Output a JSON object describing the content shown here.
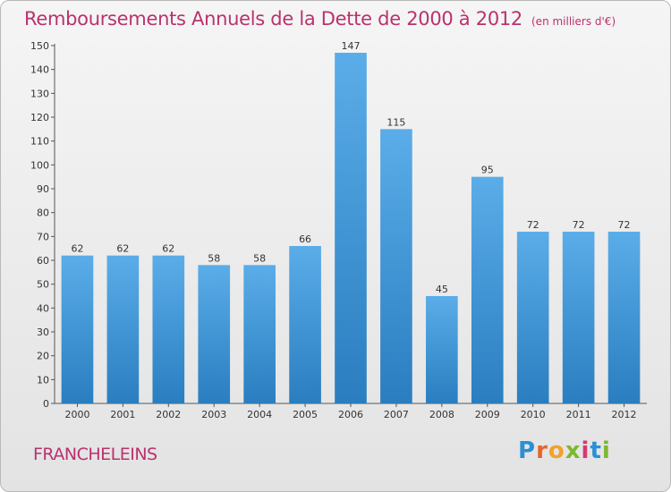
{
  "title": "Remboursements Annuels de la Dette de 2000 à 2012",
  "unit": "(en milliers d'€)",
  "commune": "FRANCHELEINS",
  "logo": {
    "text": "Proxiti",
    "name": "proxiti-logo"
  },
  "colors": {
    "title": "#b9326e",
    "bar_top": "#5aade8",
    "bar_bottom": "#2a7ec0",
    "axis": "#555555"
  },
  "chart_data": {
    "type": "bar",
    "categories": [
      "2000",
      "2001",
      "2002",
      "2003",
      "2004",
      "2005",
      "2006",
      "2007",
      "2008",
      "2009",
      "2010",
      "2011",
      "2012"
    ],
    "values": [
      62,
      62,
      62,
      58,
      58,
      66,
      147,
      115,
      45,
      95,
      72,
      72,
      72
    ],
    "ylim": [
      0,
      150
    ],
    "yticks": [
      0,
      10,
      20,
      30,
      40,
      50,
      60,
      70,
      80,
      90,
      100,
      110,
      120,
      130,
      140,
      150
    ],
    "grid": false,
    "data_labels": true
  }
}
